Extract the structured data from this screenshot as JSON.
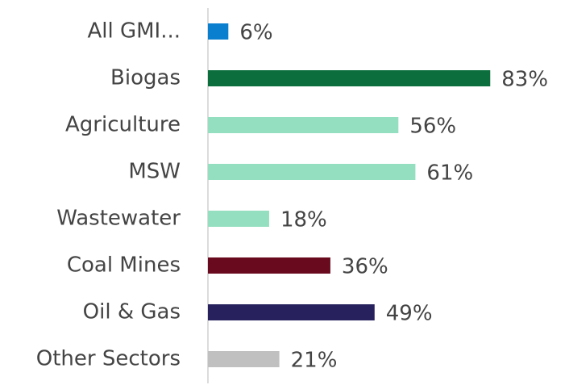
{
  "chart_data": {
    "type": "bar",
    "orientation": "horizontal",
    "categories": [
      "All GMI...",
      "Biogas",
      "Agriculture",
      "MSW",
      "Wastewater",
      "Coal Mines",
      "Oil & Gas",
      "Other Sectors"
    ],
    "values": [
      6,
      83,
      56,
      61,
      18,
      36,
      49,
      21
    ],
    "value_labels": [
      "6%",
      "83%",
      "56%",
      "61%",
      "18%",
      "36%",
      "49%",
      "21%"
    ],
    "colors": [
      "#0a7fcf",
      "#0b6e3c",
      "#94dfbf",
      "#94dfbf",
      "#94dfbf",
      "#6a0a1e",
      "#27225e",
      "#c0c0c0"
    ]
  }
}
